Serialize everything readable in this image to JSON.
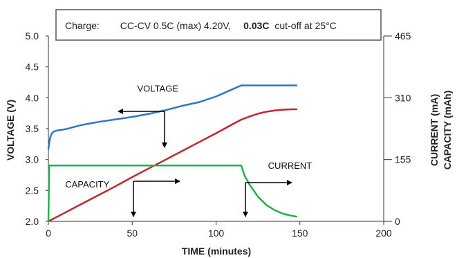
{
  "chart_data": {
    "type": "line",
    "title": "",
    "annotation_box": {
      "prefix": "Charge:",
      "main": "CC-CV 0.5C (max) 4.20V,",
      "bold": "0.03C",
      "suffix": "cut-off at 25°C"
    },
    "xlabel": "TIME (minutes)",
    "ylabel_left": "VOLTAGE (V)",
    "ylabel_right_1": "CURRENT (mA)",
    "ylabel_right_2": "CAPACITY (mAh)",
    "xlim": [
      0,
      200
    ],
    "ylim_left": [
      2.0,
      5.0
    ],
    "ylim_right": [
      0,
      465
    ],
    "x_ticks": [
      "0",
      "50",
      "100",
      "150",
      "200"
    ],
    "y_left_ticks": [
      "2.0",
      "2.5",
      "3.0",
      "3.5",
      "4.0",
      "4.5",
      "5.0"
    ],
    "y_right_ticks": [
      "0",
      "155",
      "310",
      "465"
    ],
    "grid": false,
    "series": [
      {
        "name": "VOLTAGE",
        "axis": "left",
        "color": "#2e75c9",
        "x": [
          0,
          1,
          2,
          3,
          5,
          10,
          20,
          30,
          40,
          50,
          60,
          70,
          80,
          90,
          100,
          105,
          110,
          115,
          120,
          130,
          140,
          148
        ],
        "y": [
          3.17,
          3.35,
          3.42,
          3.45,
          3.47,
          3.49,
          3.56,
          3.61,
          3.65,
          3.69,
          3.74,
          3.8,
          3.87,
          3.93,
          4.02,
          4.08,
          4.14,
          4.2,
          4.2,
          4.2,
          4.2,
          4.2
        ]
      },
      {
        "name": "CAPACITY",
        "axis": "right",
        "color": "#c0262c",
        "x": [
          0,
          10,
          20,
          30,
          40,
          50,
          60,
          70,
          80,
          90,
          100,
          110,
          115,
          120,
          125,
          130,
          135,
          140,
          145,
          148
        ],
        "y": [
          0,
          22,
          44,
          66,
          88,
          111,
          133,
          155,
          177,
          199,
          221,
          244,
          255,
          263,
          270,
          275,
          278,
          280,
          281,
          281
        ]
      },
      {
        "name": "CURRENT",
        "axis": "right",
        "color": "#1fb24a",
        "x": [
          0,
          0.5,
          20,
          40,
          60,
          80,
          100,
          115,
          117,
          120,
          125,
          130,
          135,
          140,
          145,
          148
        ],
        "y": [
          0,
          140,
          140,
          140,
          140,
          140,
          140,
          140,
          115,
          92,
          62,
          41,
          28,
          19,
          14,
          12
        ]
      }
    ],
    "labels": [
      {
        "text": "VOLTAGE",
        "x": 53,
        "y": 4.1
      },
      {
        "text": "CAPACITY",
        "x": 10,
        "y": 2.55
      },
      {
        "text": "CURRENT",
        "x": 131,
        "y": 2.85
      }
    ]
  }
}
